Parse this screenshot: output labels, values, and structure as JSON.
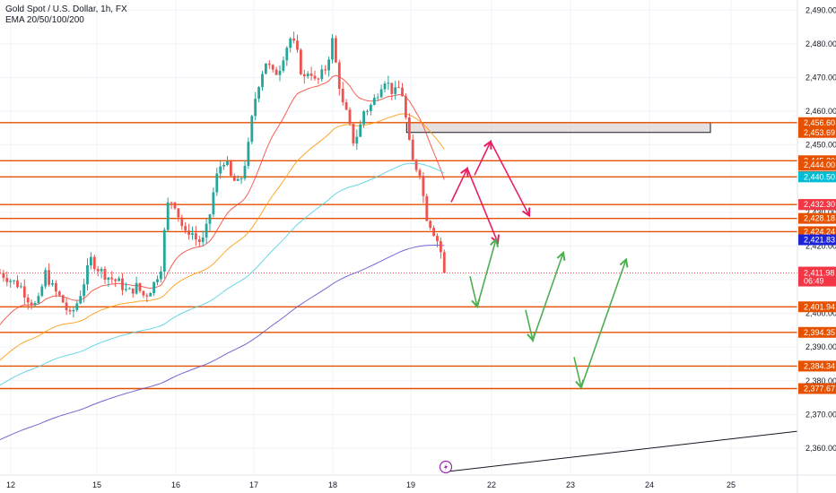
{
  "header": {
    "title": "Gold Spot / U.S. Dollar, 1h, FX",
    "indicator": "EMA 20/50/100/200"
  },
  "colors": {
    "bull": "#26a69a",
    "bear": "#ef5350",
    "level": "#e65100",
    "ema20": "#f44336",
    "ema50": "#ff9800",
    "ema100": "#4dd0e1",
    "ema200": "#5b4fc9",
    "arrow_up": "#4caf50",
    "arrow_down": "#e91e63",
    "price_tag": "#f23645"
  },
  "chart_data": {
    "type": "candlestick",
    "symbol": "Gold Spot / U.S. Dollar",
    "timeframe": "1h",
    "y_range": [
      2352,
      2493
    ],
    "y_ticks": [
      2490,
      2480,
      2470,
      2460,
      2450,
      2440,
      2430,
      2420,
      2410,
      2400,
      2390,
      2380,
      2370,
      2360
    ],
    "y_tick_labels": [
      "2,490.00",
      "2,480.00",
      "2,470.00",
      "2,460.00",
      "2,450.00",
      "2,440.00",
      "2,430.00",
      "2,420.00",
      "2,410.00",
      "2,400.00",
      "2,390.00",
      "2,380.00",
      "2,370.00",
      "2,360.00"
    ],
    "x_ticks": [
      {
        "label": "12",
        "day": 12
      },
      {
        "label": "15",
        "day": 15
      },
      {
        "label": "16",
        "day": 16
      },
      {
        "label": "17",
        "day": 17
      },
      {
        "label": "18",
        "day": 18
      },
      {
        "label": "19",
        "day": 19
      },
      {
        "label": "22",
        "day": 22
      },
      {
        "label": "23",
        "day": 23
      },
      {
        "label": "24",
        "day": 24
      },
      {
        "label": "25",
        "day": 25
      }
    ],
    "x_range_days": [
      11.8,
      26.1
    ],
    "anchors_close": [
      [
        11.8,
        2412
      ],
      [
        12.3,
        2408
      ],
      [
        12.5,
        2404
      ],
      [
        12.7,
        2402
      ],
      [
        12.9,
        2412
      ],
      [
        13.1,
        2407
      ],
      [
        13.3,
        2404
      ],
      [
        13.5,
        2399
      ],
      [
        13.7,
        2404
      ],
      [
        14.0,
        2416
      ],
      [
        14.2,
        2413
      ],
      [
        14.4,
        2411
      ],
      [
        14.7,
        2409
      ],
      [
        14.9,
        2406
      ],
      [
        15.1,
        2408
      ],
      [
        15.3,
        2405
      ],
      [
        15.5,
        2408
      ],
      [
        15.7,
        2414
      ],
      [
        15.85,
        2432
      ],
      [
        16.0,
        2434
      ],
      [
        16.15,
        2428
      ],
      [
        16.3,
        2423
      ],
      [
        16.4,
        2425
      ],
      [
        16.55,
        2422
      ],
      [
        16.7,
        2421
      ],
      [
        16.85,
        2427
      ],
      [
        17.0,
        2438
      ],
      [
        17.1,
        2443
      ],
      [
        17.25,
        2446
      ],
      [
        17.4,
        2440
      ],
      [
        17.6,
        2438
      ],
      [
        17.8,
        2448
      ],
      [
        17.95,
        2462
      ],
      [
        18.1,
        2470
      ],
      [
        18.25,
        2475
      ],
      [
        18.4,
        2471
      ],
      [
        18.55,
        2472
      ],
      [
        18.7,
        2478
      ],
      [
        18.85,
        2482
      ],
      [
        19.0,
        2477
      ],
      [
        19.15,
        2469
      ],
      [
        19.3,
        2473
      ],
      [
        19.45,
        2468
      ],
      [
        19.55,
        2470
      ],
      [
        19.7,
        2473
      ],
      [
        19.85,
        2481
      ],
      [
        19.95,
        2473
      ],
      [
        20.1,
        2462
      ],
      [
        20.2,
        2459
      ],
      [
        20.35,
        2451
      ],
      [
        20.5,
        2454
      ],
      [
        20.6,
        2460
      ],
      [
        20.75,
        2461
      ],
      [
        20.85,
        2463
      ],
      [
        21.0,
        2467
      ],
      [
        21.1,
        2470
      ],
      [
        21.25,
        2467
      ],
      [
        21.35,
        2465
      ],
      [
        21.45,
        2467
      ],
      [
        21.55,
        2465
      ],
      [
        21.65,
        2456
      ],
      [
        21.75,
        2447
      ],
      [
        21.85,
        2443
      ],
      [
        21.95,
        2444
      ],
      [
        22.05,
        2435
      ],
      [
        22.15,
        2428
      ],
      [
        22.25,
        2426
      ],
      [
        22.35,
        2423
      ],
      [
        22.45,
        2420
      ],
      [
        22.55,
        2414
      ],
      [
        22.6,
        2412
      ]
    ],
    "levels": [
      {
        "value": 2456.6,
        "label": "2,456.60"
      },
      {
        "value": 2453.69,
        "label": "2,453.69"
      },
      {
        "value": 2445.3,
        "label": "2,445.30"
      },
      {
        "value": 2444.0,
        "label": "2,444.00"
      },
      {
        "value": 2440.67,
        "label": "2,440.67"
      },
      {
        "value": 2432.29,
        "label": "2,432.29"
      },
      {
        "value": 2428.18,
        "label": "2,428.18"
      },
      {
        "value": 2424.24,
        "label": "2,424.24"
      },
      {
        "value": 2401.94,
        "label": "2,401.94"
      },
      {
        "value": 2394.35,
        "label": "2,394.35"
      },
      {
        "value": 2384.34,
        "label": "2,384.34"
      },
      {
        "value": 2377.67,
        "label": "2,377.67"
      }
    ],
    "line_levels_drawn": [
      2456.6,
      2445.3,
      2440.5,
      2432.3,
      2428.18,
      2424.24,
      2401.94,
      2394.35,
      2384.34,
      2377.67
    ],
    "ema_labels": [
      {
        "value": 2440.5,
        "label": "2,440.50",
        "color": "#00bcd4"
      },
      {
        "value": 2432.3,
        "label": "2,432.30",
        "color": "#f23645"
      },
      {
        "value": 2421.83,
        "label": "2,421.83",
        "color": "#1e22d6"
      }
    ],
    "current_price": {
      "value": 2411.98,
      "label": "2,411.98",
      "countdown": "06:49"
    },
    "zone": {
      "from_day": 20.7,
      "to_day": 25.0,
      "top": 2456.6,
      "bottom": 2453.69
    },
    "projections": [
      {
        "dir": "down",
        "from": [
          22.8,
          2443
        ],
        "to": [
          23.1,
          2421
        ]
      },
      {
        "dir": "down",
        "from": [
          23.55,
          2451
        ],
        "to": [
          23.95,
          2429
        ]
      },
      {
        "dir": "up",
        "from": [
          23.15,
          2402
        ],
        "to": [
          23.4,
          2422
        ]
      },
      {
        "dir": "up",
        "from": [
          24.15,
          2392
        ],
        "to": [
          24.45,
          2418
        ]
      },
      {
        "dir": "up",
        "from": [
          24.8,
          2378
        ],
        "to": [
          25.25,
          2416
        ]
      }
    ],
    "trendline": {
      "from": [
        22.4,
        2353
      ],
      "to": [
        26.1,
        2365
      ]
    }
  }
}
